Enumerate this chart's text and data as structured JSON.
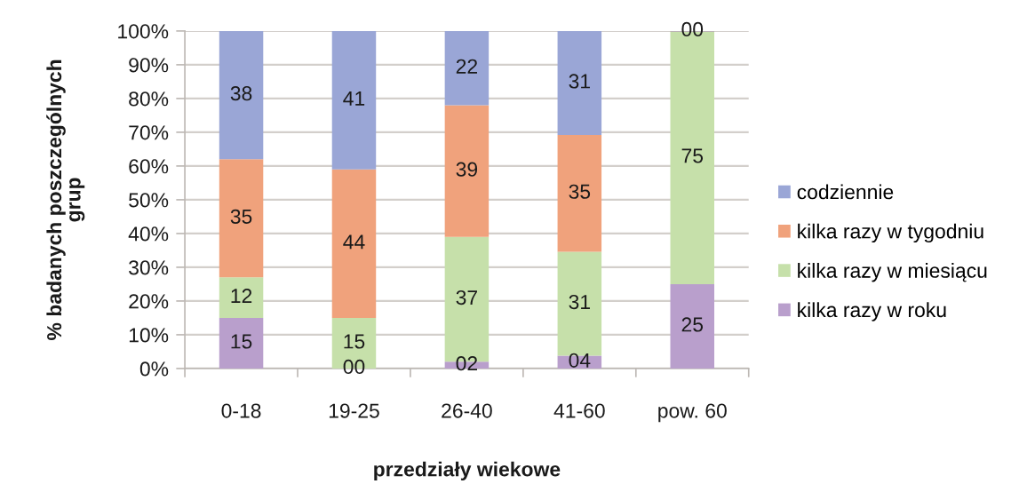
{
  "chart_data": {
    "type": "bar",
    "stacked": true,
    "xlabel": "przedziały wiekowe",
    "ylabel": "% badanych poszczególnych\ngrup",
    "categories": [
      "0-18",
      "19-25",
      "26-40",
      "41-60",
      "pow. 60"
    ],
    "series": [
      {
        "name": "kilka razy w roku",
        "color": "#b99fcc",
        "values": [
          15,
          0,
          2,
          3.8,
          25
        ],
        "value_labels": [
          "15",
          "00",
          "02",
          "04",
          "25"
        ]
      },
      {
        "name": "kilka razy w miesiącu",
        "color": "#c6e0aa",
        "values": [
          12,
          15,
          37,
          30.8,
          75
        ],
        "value_labels": [
          "12",
          "15",
          "37",
          "31",
          "75"
        ]
      },
      {
        "name": "kilka razy w tygodniu",
        "color": "#f0a27c",
        "values": [
          35,
          44,
          39,
          34.6,
          0
        ],
        "value_labels": [
          "35",
          "44",
          "39",
          "35",
          null
        ]
      },
      {
        "name": "codziennie",
        "color": "#9aa6d6",
        "values": [
          38,
          41,
          22,
          30.8,
          0
        ],
        "value_labels": [
          "38",
          "41",
          "22",
          "31",
          "00"
        ]
      }
    ],
    "ylim": [
      0,
      100
    ],
    "yticks": [
      {
        "value": 0,
        "label": "0%"
      },
      {
        "value": 10,
        "label": "10%"
      },
      {
        "value": 20,
        "label": "20%"
      },
      {
        "value": 30,
        "label": "30%"
      },
      {
        "value": 40,
        "label": "40%"
      },
      {
        "value": 50,
        "label": "50%"
      },
      {
        "value": 60,
        "label": "60%"
      },
      {
        "value": 70,
        "label": "70%"
      },
      {
        "value": 80,
        "label": "80%"
      },
      {
        "value": 90,
        "label": "90%"
      },
      {
        "value": 100,
        "label": "100%"
      }
    ],
    "grid": "y",
    "legend": "right"
  }
}
